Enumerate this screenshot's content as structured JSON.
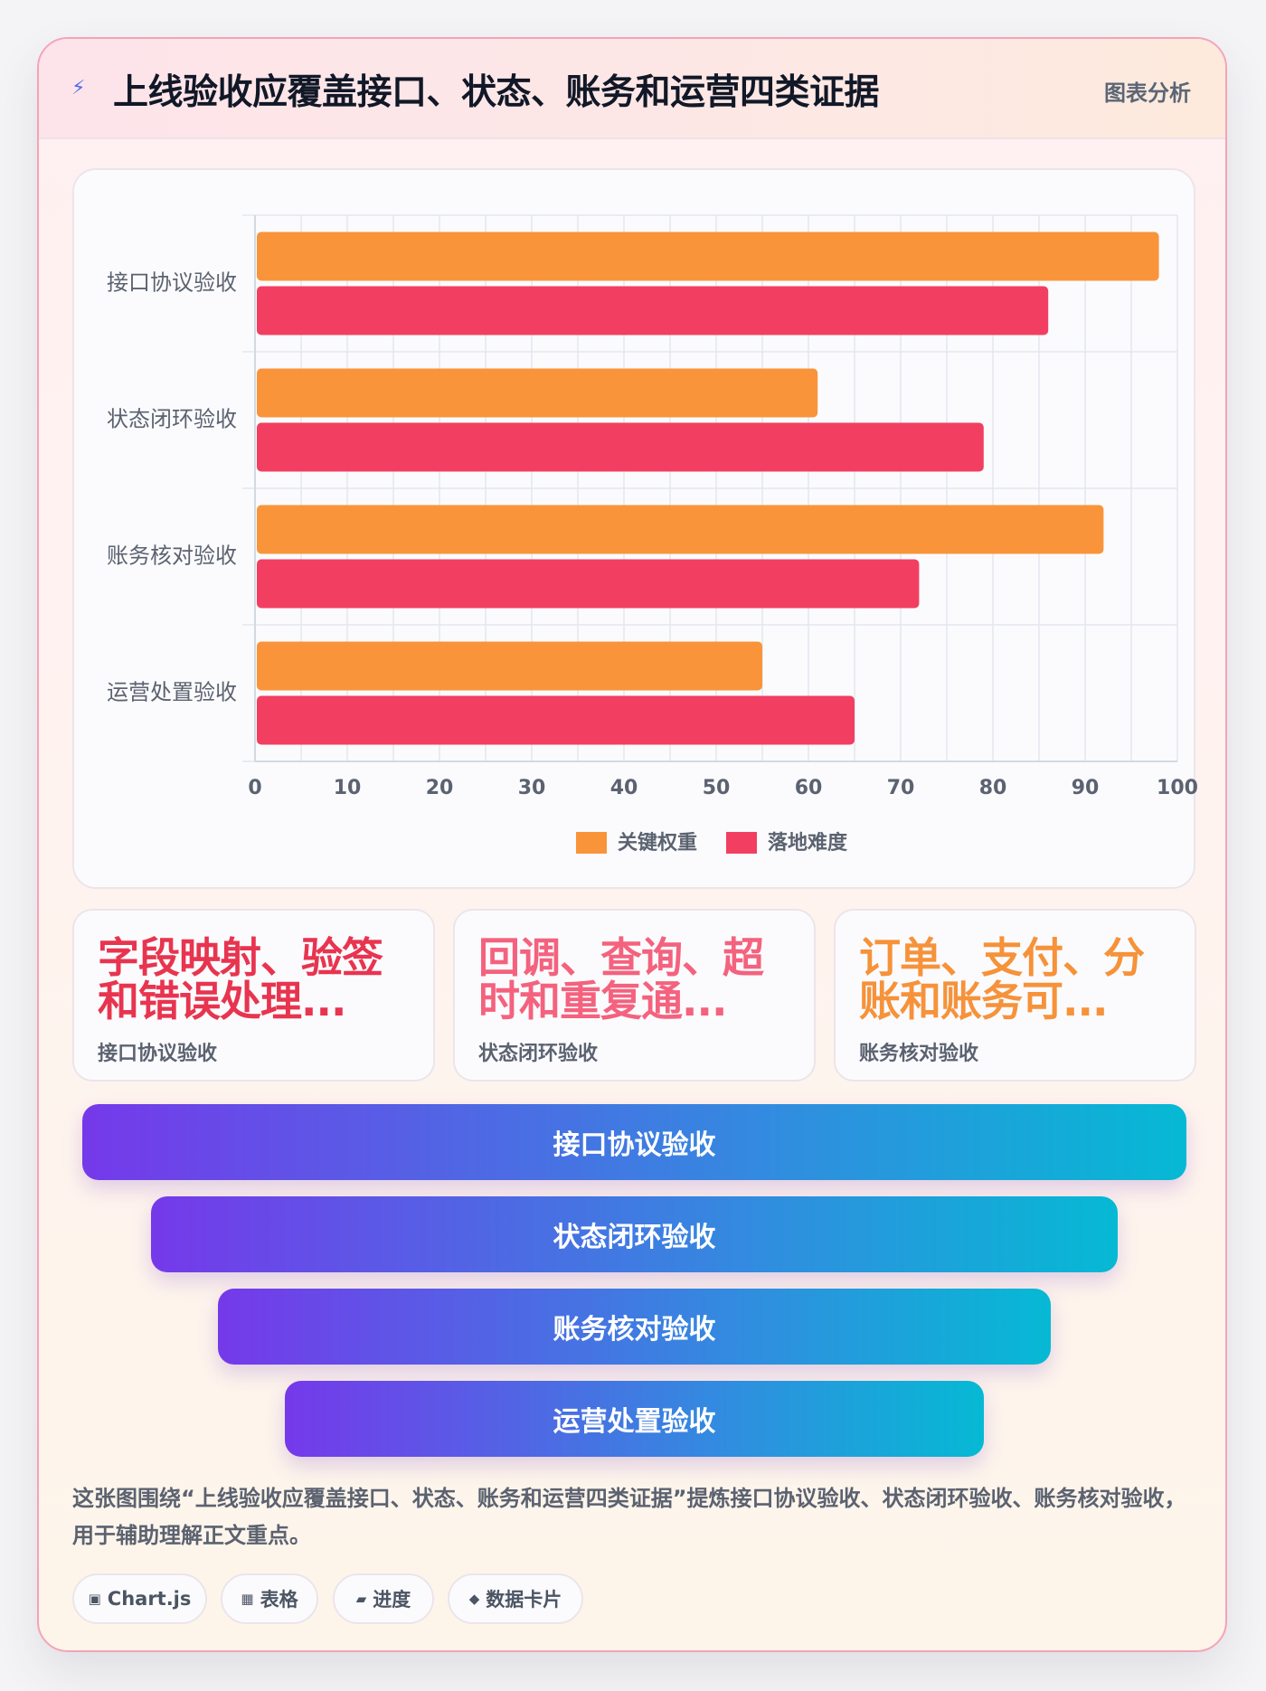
{
  "header": {
    "title": "上线验收应覆盖接口、状态、账务和运营四类证据",
    "tag": "图表分析"
  },
  "chart_data": {
    "type": "bar",
    "orientation": "horizontal",
    "categories": [
      "接口协议验收",
      "状态闭环验收",
      "账务核对验收",
      "运营处置验收"
    ],
    "series": [
      {
        "name": "关键权重",
        "color": "#f9943b",
        "values": [
          98,
          61,
          92,
          55
        ]
      },
      {
        "name": "落地难度",
        "color": "#f23f61",
        "values": [
          86,
          79,
          72,
          65
        ]
      }
    ],
    "xlim": [
      0,
      100
    ],
    "x_ticks": [
      0,
      10,
      20,
      30,
      40,
      50,
      60,
      70,
      80,
      90,
      100
    ],
    "grid": true,
    "legend_position": "bottom"
  },
  "metrics": [
    {
      "value": "字段映射、验签和错误处理...",
      "label": "接口协议验收",
      "color": "#e8344f"
    },
    {
      "value": "回调、查询、超时和重复通...",
      "label": "状态闭环验收",
      "color": "#f4627e"
    },
    {
      "value": "订单、支付、分账和账务可...",
      "label": "账务核对验收",
      "color": "#f6923a"
    }
  ],
  "funnel": [
    "接口协议验收",
    "状态闭环验收",
    "账务核对验收",
    "运营处置验收"
  ],
  "description": "这张图围绕“上线验收应覆盖接口、状态、账务和运营四类证据”提炼接口协议验收、状态闭环验收、账务核对验收，用于辅助理解正文重点。",
  "chips": [
    {
      "icon": "▣",
      "label": "Chart.js"
    },
    {
      "icon": "▦",
      "label": "表格"
    },
    {
      "icon": "▰",
      "label": "进度"
    },
    {
      "icon": "◆",
      "label": "数据卡片"
    }
  ]
}
